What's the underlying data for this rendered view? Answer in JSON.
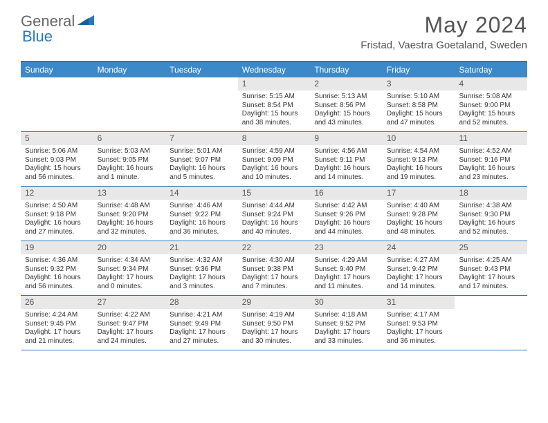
{
  "logo": {
    "general": "General",
    "blue": "Blue"
  },
  "title": "May 2024",
  "location": "Fristad, Vaestra Goetaland, Sweden",
  "colors": {
    "header_bar": "#3b89c9",
    "border": "#2878bd",
    "daynum_bg": "#e8e8e8",
    "text": "#333333",
    "logo_gray": "#666666",
    "logo_blue": "#2878bd"
  },
  "weekdays": [
    "Sunday",
    "Monday",
    "Tuesday",
    "Wednesday",
    "Thursday",
    "Friday",
    "Saturday"
  ],
  "weeks": [
    [
      {
        "num": "",
        "sunrise": "",
        "sunset": "",
        "daylight": ""
      },
      {
        "num": "",
        "sunrise": "",
        "sunset": "",
        "daylight": ""
      },
      {
        "num": "",
        "sunrise": "",
        "sunset": "",
        "daylight": ""
      },
      {
        "num": "1",
        "sunrise": "Sunrise: 5:15 AM",
        "sunset": "Sunset: 8:54 PM",
        "daylight": "Daylight: 15 hours and 38 minutes."
      },
      {
        "num": "2",
        "sunrise": "Sunrise: 5:13 AM",
        "sunset": "Sunset: 8:56 PM",
        "daylight": "Daylight: 15 hours and 43 minutes."
      },
      {
        "num": "3",
        "sunrise": "Sunrise: 5:10 AM",
        "sunset": "Sunset: 8:58 PM",
        "daylight": "Daylight: 15 hours and 47 minutes."
      },
      {
        "num": "4",
        "sunrise": "Sunrise: 5:08 AM",
        "sunset": "Sunset: 9:00 PM",
        "daylight": "Daylight: 15 hours and 52 minutes."
      }
    ],
    [
      {
        "num": "5",
        "sunrise": "Sunrise: 5:06 AM",
        "sunset": "Sunset: 9:03 PM",
        "daylight": "Daylight: 15 hours and 56 minutes."
      },
      {
        "num": "6",
        "sunrise": "Sunrise: 5:03 AM",
        "sunset": "Sunset: 9:05 PM",
        "daylight": "Daylight: 16 hours and 1 minute."
      },
      {
        "num": "7",
        "sunrise": "Sunrise: 5:01 AM",
        "sunset": "Sunset: 9:07 PM",
        "daylight": "Daylight: 16 hours and 5 minutes."
      },
      {
        "num": "8",
        "sunrise": "Sunrise: 4:59 AM",
        "sunset": "Sunset: 9:09 PM",
        "daylight": "Daylight: 16 hours and 10 minutes."
      },
      {
        "num": "9",
        "sunrise": "Sunrise: 4:56 AM",
        "sunset": "Sunset: 9:11 PM",
        "daylight": "Daylight: 16 hours and 14 minutes."
      },
      {
        "num": "10",
        "sunrise": "Sunrise: 4:54 AM",
        "sunset": "Sunset: 9:13 PM",
        "daylight": "Daylight: 16 hours and 19 minutes."
      },
      {
        "num": "11",
        "sunrise": "Sunrise: 4:52 AM",
        "sunset": "Sunset: 9:16 PM",
        "daylight": "Daylight: 16 hours and 23 minutes."
      }
    ],
    [
      {
        "num": "12",
        "sunrise": "Sunrise: 4:50 AM",
        "sunset": "Sunset: 9:18 PM",
        "daylight": "Daylight: 16 hours and 27 minutes."
      },
      {
        "num": "13",
        "sunrise": "Sunrise: 4:48 AM",
        "sunset": "Sunset: 9:20 PM",
        "daylight": "Daylight: 16 hours and 32 minutes."
      },
      {
        "num": "14",
        "sunrise": "Sunrise: 4:46 AM",
        "sunset": "Sunset: 9:22 PM",
        "daylight": "Daylight: 16 hours and 36 minutes."
      },
      {
        "num": "15",
        "sunrise": "Sunrise: 4:44 AM",
        "sunset": "Sunset: 9:24 PM",
        "daylight": "Daylight: 16 hours and 40 minutes."
      },
      {
        "num": "16",
        "sunrise": "Sunrise: 4:42 AM",
        "sunset": "Sunset: 9:26 PM",
        "daylight": "Daylight: 16 hours and 44 minutes."
      },
      {
        "num": "17",
        "sunrise": "Sunrise: 4:40 AM",
        "sunset": "Sunset: 9:28 PM",
        "daylight": "Daylight: 16 hours and 48 minutes."
      },
      {
        "num": "18",
        "sunrise": "Sunrise: 4:38 AM",
        "sunset": "Sunset: 9:30 PM",
        "daylight": "Daylight: 16 hours and 52 minutes."
      }
    ],
    [
      {
        "num": "19",
        "sunrise": "Sunrise: 4:36 AM",
        "sunset": "Sunset: 9:32 PM",
        "daylight": "Daylight: 16 hours and 56 minutes."
      },
      {
        "num": "20",
        "sunrise": "Sunrise: 4:34 AM",
        "sunset": "Sunset: 9:34 PM",
        "daylight": "Daylight: 17 hours and 0 minutes."
      },
      {
        "num": "21",
        "sunrise": "Sunrise: 4:32 AM",
        "sunset": "Sunset: 9:36 PM",
        "daylight": "Daylight: 17 hours and 3 minutes."
      },
      {
        "num": "22",
        "sunrise": "Sunrise: 4:30 AM",
        "sunset": "Sunset: 9:38 PM",
        "daylight": "Daylight: 17 hours and 7 minutes."
      },
      {
        "num": "23",
        "sunrise": "Sunrise: 4:29 AM",
        "sunset": "Sunset: 9:40 PM",
        "daylight": "Daylight: 17 hours and 11 minutes."
      },
      {
        "num": "24",
        "sunrise": "Sunrise: 4:27 AM",
        "sunset": "Sunset: 9:42 PM",
        "daylight": "Daylight: 17 hours and 14 minutes."
      },
      {
        "num": "25",
        "sunrise": "Sunrise: 4:25 AM",
        "sunset": "Sunset: 9:43 PM",
        "daylight": "Daylight: 17 hours and 17 minutes."
      }
    ],
    [
      {
        "num": "26",
        "sunrise": "Sunrise: 4:24 AM",
        "sunset": "Sunset: 9:45 PM",
        "daylight": "Daylight: 17 hours and 21 minutes."
      },
      {
        "num": "27",
        "sunrise": "Sunrise: 4:22 AM",
        "sunset": "Sunset: 9:47 PM",
        "daylight": "Daylight: 17 hours and 24 minutes."
      },
      {
        "num": "28",
        "sunrise": "Sunrise: 4:21 AM",
        "sunset": "Sunset: 9:49 PM",
        "daylight": "Daylight: 17 hours and 27 minutes."
      },
      {
        "num": "29",
        "sunrise": "Sunrise: 4:19 AM",
        "sunset": "Sunset: 9:50 PM",
        "daylight": "Daylight: 17 hours and 30 minutes."
      },
      {
        "num": "30",
        "sunrise": "Sunrise: 4:18 AM",
        "sunset": "Sunset: 9:52 PM",
        "daylight": "Daylight: 17 hours and 33 minutes."
      },
      {
        "num": "31",
        "sunrise": "Sunrise: 4:17 AM",
        "sunset": "Sunset: 9:53 PM",
        "daylight": "Daylight: 17 hours and 36 minutes."
      },
      {
        "num": "",
        "sunrise": "",
        "sunset": "",
        "daylight": ""
      }
    ]
  ]
}
